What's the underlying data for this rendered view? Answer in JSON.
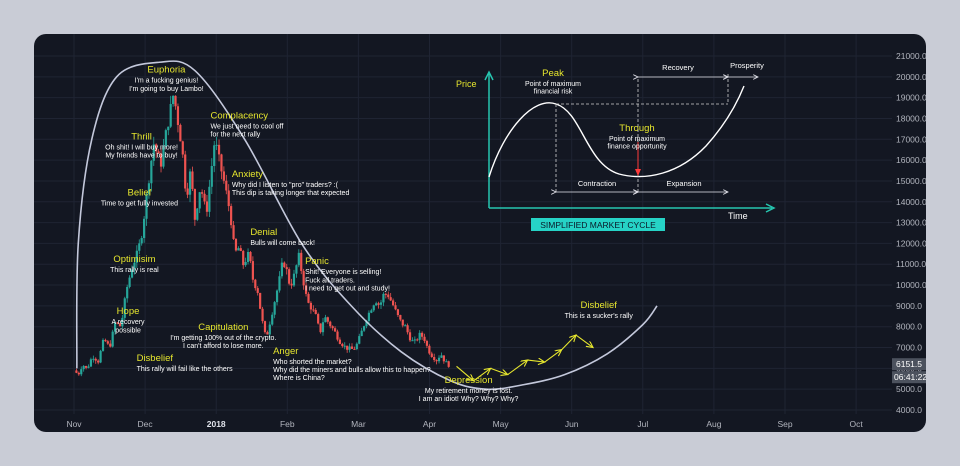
{
  "theme": {
    "background": "#131722",
    "grid": "#1f2433",
    "up": "#26a69a",
    "down": "#ef5350",
    "emotion_title": "#e6e62e",
    "annotation_text": "#ffffff",
    "cycle_curve": "#d7dcf0",
    "inset_axis": "#26c6b0",
    "arrow": "#e6e62e",
    "badge_bg": "#4c525e"
  },
  "price_badges": [
    "6151.5",
    "06:41:22"
  ],
  "chart_data": {
    "type": "candlestick",
    "title": "",
    "xlabel": "",
    "ylabel": "",
    "x_ticks": [
      "Nov",
      "Dec",
      "2018",
      "Feb",
      "Mar",
      "Apr",
      "May",
      "Jun",
      "Jul",
      "Aug",
      "Sep",
      "Oct"
    ],
    "y_ticks": [
      4000,
      5000,
      6000,
      7000,
      8000,
      9000,
      10000,
      11000,
      12000,
      13000,
      14000,
      15000,
      16000,
      17000,
      18000,
      19000,
      20000,
      21000
    ],
    "y_tick_labels": [
      "4000.0",
      "5000.0",
      "6000.0",
      "7000.0",
      "8000.0",
      "9000.0",
      "10000.0",
      "11000.0",
      "12000.0",
      "13000.0",
      "14000.0",
      "15000.0",
      "16000.0",
      "17000.0",
      "18000.0",
      "19000.0",
      "20000.0",
      "21000.0"
    ],
    "ylim": [
      3600,
      21500
    ],
    "price_path": [
      [
        0,
        5900
      ],
      [
        0.06,
        5700
      ],
      [
        0.12,
        6200
      ],
      [
        0.18,
        5950
      ],
      [
        0.26,
        6600
      ],
      [
        0.34,
        6350
      ],
      [
        0.42,
        7400
      ],
      [
        0.5,
        7000
      ],
      [
        0.58,
        8200
      ],
      [
        0.66,
        8000
      ],
      [
        0.74,
        9800
      ],
      [
        0.82,
        10900
      ],
      [
        0.9,
        11600
      ],
      [
        0.96,
        12600
      ],
      [
        1.04,
        14800
      ],
      [
        1.12,
        16800
      ],
      [
        1.22,
        15800
      ],
      [
        1.3,
        17400
      ],
      [
        1.4,
        19200
      ],
      [
        1.46,
        17900
      ],
      [
        1.52,
        16600
      ],
      [
        1.58,
        14200
      ],
      [
        1.64,
        15500
      ],
      [
        1.7,
        13200
      ],
      [
        1.78,
        14800
      ],
      [
        1.86,
        13400
      ],
      [
        1.92,
        15200
      ],
      [
        1.98,
        17000
      ],
      [
        2.04,
        16000
      ],
      [
        2.12,
        14800
      ],
      [
        2.2,
        13400
      ],
      [
        2.26,
        11500
      ],
      [
        2.32,
        11800
      ],
      [
        2.38,
        11000
      ],
      [
        2.46,
        11500
      ],
      [
        2.52,
        10200
      ],
      [
        2.58,
        9800
      ],
      [
        2.64,
        8400
      ],
      [
        2.7,
        7400
      ],
      [
        2.76,
        8300
      ],
      [
        2.82,
        9200
      ],
      [
        2.88,
        10100
      ],
      [
        2.94,
        11200
      ],
      [
        3.0,
        10600
      ],
      [
        3.04,
        9900
      ],
      [
        3.1,
        10500
      ],
      [
        3.16,
        11400
      ],
      [
        3.22,
        10300
      ],
      [
        3.28,
        9200
      ],
      [
        3.34,
        8900
      ],
      [
        3.4,
        8500
      ],
      [
        3.46,
        7700
      ],
      [
        3.52,
        8500
      ],
      [
        3.58,
        8200
      ],
      [
        3.66,
        7800
      ],
      [
        3.74,
        7300
      ],
      [
        3.82,
        7000
      ],
      [
        3.9,
        6900
      ],
      [
        3.96,
        7000
      ],
      [
        4.02,
        7500
      ],
      [
        4.1,
        8300
      ],
      [
        4.18,
        8900
      ],
      [
        4.24,
        9300
      ],
      [
        4.3,
        9000
      ],
      [
        4.36,
        9600
      ],
      [
        4.42,
        9500
      ],
      [
        4.48,
        9100
      ],
      [
        4.54,
        8600
      ],
      [
        4.6,
        8200
      ],
      [
        4.66,
        8000
      ],
      [
        4.72,
        7500
      ],
      [
        4.78,
        7200
      ],
      [
        4.86,
        7600
      ],
      [
        4.92,
        7500
      ],
      [
        4.98,
        6900
      ],
      [
        5.04,
        6600
      ],
      [
        5.1,
        6400
      ],
      [
        5.16,
        6700
      ],
      [
        5.22,
        6300
      ],
      [
        5.28,
        6150
      ]
    ],
    "projection": [
      [
        5.38,
        6100
      ],
      [
        5.62,
        5400
      ],
      [
        5.86,
        6000
      ],
      [
        6.1,
        5700
      ],
      [
        6.38,
        6400
      ],
      [
        6.62,
        6300
      ],
      [
        6.86,
        6900
      ],
      [
        7.06,
        7600
      ]
    ],
    "projection_end_arrow": [
      7.3,
      7000
    ],
    "cycle_curve": [
      [
        0.04,
        6000
      ],
      [
        0.06,
        12000
      ],
      [
        0.25,
        17000
      ],
      [
        0.6,
        20000
      ],
      [
        1.2,
        20700
      ],
      [
        1.7,
        20300
      ],
      [
        2.4,
        17000
      ],
      [
        3.2,
        12000
      ],
      [
        3.9,
        9000
      ],
      [
        4.6,
        6800
      ],
      [
        5.3,
        5400
      ],
      [
        5.8,
        5000
      ],
      [
        6.3,
        5200
      ],
      [
        6.9,
        5700
      ],
      [
        7.5,
        6700
      ],
      [
        8.0,
        8100
      ],
      [
        8.2,
        9000
      ]
    ],
    "stages": [
      {
        "title": "Euphoria",
        "lines": [
          "I'm a fucking genius!",
          "I'm going to buy Lambo!"
        ],
        "x": 1.3,
        "y": 20200,
        "align": "middle"
      },
      {
        "title": "Thrill",
        "lines": [
          "Oh shit! I will buy more!",
          "My friends have to buy!"
        ],
        "x": 0.95,
        "y": 17000,
        "align": "middle"
      },
      {
        "title": "Complacency",
        "lines": [
          "We just need to cool off",
          "for the next rally"
        ],
        "x": 1.92,
        "y": 18000,
        "align": "start"
      },
      {
        "title": "Belief",
        "lines": [
          "Time to get fully invested"
        ],
        "x": 0.92,
        "y": 14300,
        "align": "middle"
      },
      {
        "title": "Anxiety",
        "lines": [
          "Why did I listen to  \"pro\" traders? :(",
          "This dip is taking longer that expected"
        ],
        "x": 2.22,
        "y": 15200,
        "align": "start"
      },
      {
        "title": "Denial",
        "lines": [
          "Bulls will come back!"
        ],
        "x": 2.48,
        "y": 12400,
        "align": "start"
      },
      {
        "title": "Optimisim",
        "lines": [
          "This rally is real"
        ],
        "x": 0.85,
        "y": 11100,
        "align": "middle"
      },
      {
        "title": "Panic",
        "lines": [
          "Shit! Everyone is selling!",
          "Fuck all traders.",
          "I need to get out and study!"
        ],
        "x": 3.25,
        "y": 11000,
        "align": "start"
      },
      {
        "title": "Hope",
        "lines": [
          "A recovery",
          "possible"
        ],
        "x": 0.76,
        "y": 8600,
        "align": "middle"
      },
      {
        "title": "Capitulation",
        "lines": [
          "I'm getting 100% out of the crypto.",
          "I can't afford to lose more."
        ],
        "x": 2.1,
        "y": 7850,
        "align": "middle"
      },
      {
        "title": "Anger",
        "lines": [
          "Who shorted the market?",
          "Why did the miners and bulls allow this to happen?",
          "Where is China?"
        ],
        "x": 2.8,
        "y": 6700,
        "align": "start"
      },
      {
        "title": "Disbelief",
        "lines": [
          "This rally will fail like the others"
        ],
        "x": 0.88,
        "y": 6350,
        "align": "start"
      },
      {
        "title": "Depression",
        "lines": [
          "My retirement money is lost.",
          "I am an idiot! Why? Why? Why?"
        ],
        "x": 5.55,
        "y": 5300,
        "align": "middle"
      },
      {
        "title": "Disbelief",
        "lines": [
          "This is a sucker's rally"
        ],
        "x": 7.38,
        "y": 8900,
        "align": "middle"
      }
    ],
    "inset": {
      "price_label": "Price",
      "time_label": "Time",
      "badge": "SIMPLIFIED MARKET CYCLE",
      "peak": {
        "title": "Peak",
        "lines": [
          "Point of maximum",
          "financial risk"
        ]
      },
      "through": {
        "title": "Through",
        "lines": [
          "Point of maximum",
          "finance opportunity"
        ]
      },
      "contraction": "Contraction",
      "expansion": "Expansion",
      "recovery": "Recovery",
      "prosperity": "Prosperity"
    }
  }
}
